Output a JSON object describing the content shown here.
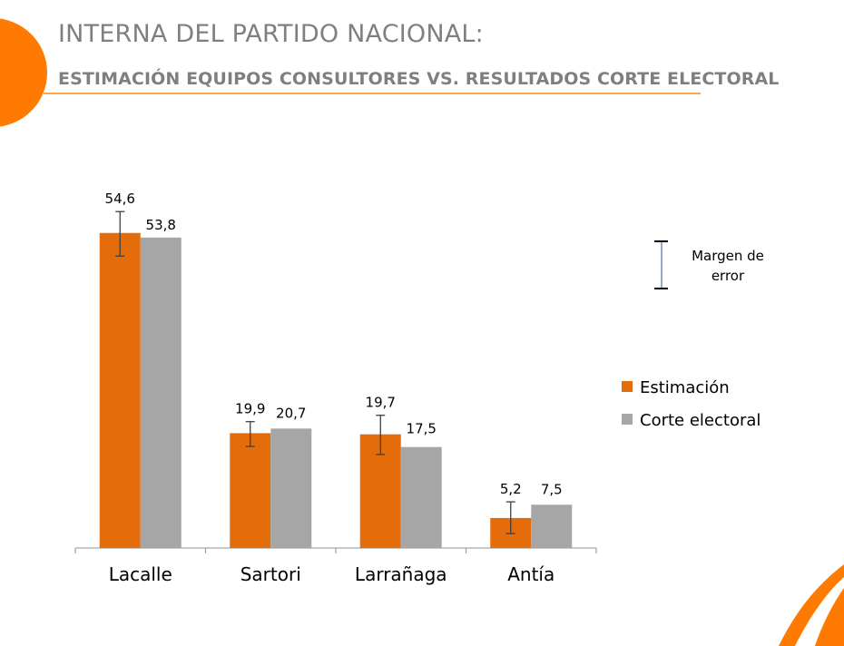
{
  "header": {
    "title": "INTERNA DEL PARTIDO NACIONAL:",
    "subtitle": "ESTIMACIÓN EQUIPOS CONSULTORES VS.  RESULTADOS CORTE ELECTORAL"
  },
  "colors": {
    "accent": "#ff7a00",
    "estimacion": "#e46c0a",
    "corte": "#a6a6a6",
    "title": "#7f7f7f",
    "rule": "#ffa64d",
    "error_bar": "#3f3f3f",
    "legend_error_bar": "#4f81bd"
  },
  "chart_data": {
    "type": "bar",
    "title": "",
    "xlabel": "",
    "ylabel": "",
    "ylim": [
      0,
      60
    ],
    "grid": false,
    "categories": [
      "Lacalle",
      "Sartori",
      "Larrañaga",
      "Antía"
    ],
    "series": [
      {
        "name": "Estimación",
        "values": [
          54.6,
          19.9,
          19.7,
          5.2
        ],
        "labels": [
          "54,6",
          "19,9",
          "19,7",
          "5,2"
        ],
        "error_low": [
          50.6,
          17.6,
          16.2,
          2.5
        ],
        "error_high": [
          58.3,
          21.9,
          23.0,
          8.0
        ]
      },
      {
        "name": "Corte electoral",
        "values": [
          53.8,
          20.7,
          17.5,
          7.5
        ],
        "labels": [
          "53,8",
          "20,7",
          "17,5",
          "7,5"
        ]
      }
    ],
    "legend": {
      "position": "right",
      "error_bar_label_line1": "Margen de",
      "error_bar_label_line2": "error"
    }
  }
}
